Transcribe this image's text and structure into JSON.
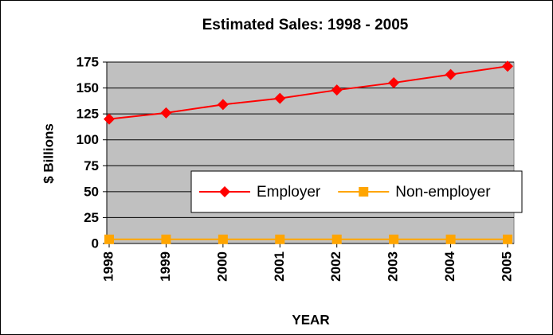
{
  "chart_data": {
    "type": "line",
    "title": "Estimated Sales: 1998 - 2005",
    "x_label": "YEAR",
    "y_label": "$ Billions",
    "categories": [
      "1998",
      "1999",
      "2000",
      "2001",
      "2002",
      "2003",
      "2004",
      "2005"
    ],
    "series": [
      {
        "name": "Employer",
        "color": "#ff0000",
        "marker": "diamond",
        "values": [
          120,
          126,
          134,
          140,
          148,
          155,
          163,
          171
        ]
      },
      {
        "name": "Non-employer",
        "color": "#ffa500",
        "marker": "square",
        "values": [
          4,
          4,
          4,
          4,
          4,
          4,
          4,
          4
        ]
      }
    ],
    "ylim": [
      0,
      175
    ],
    "yticks": [
      0,
      25,
      50,
      75,
      100,
      125,
      150,
      175
    ],
    "grid": true,
    "legend": "right"
  }
}
